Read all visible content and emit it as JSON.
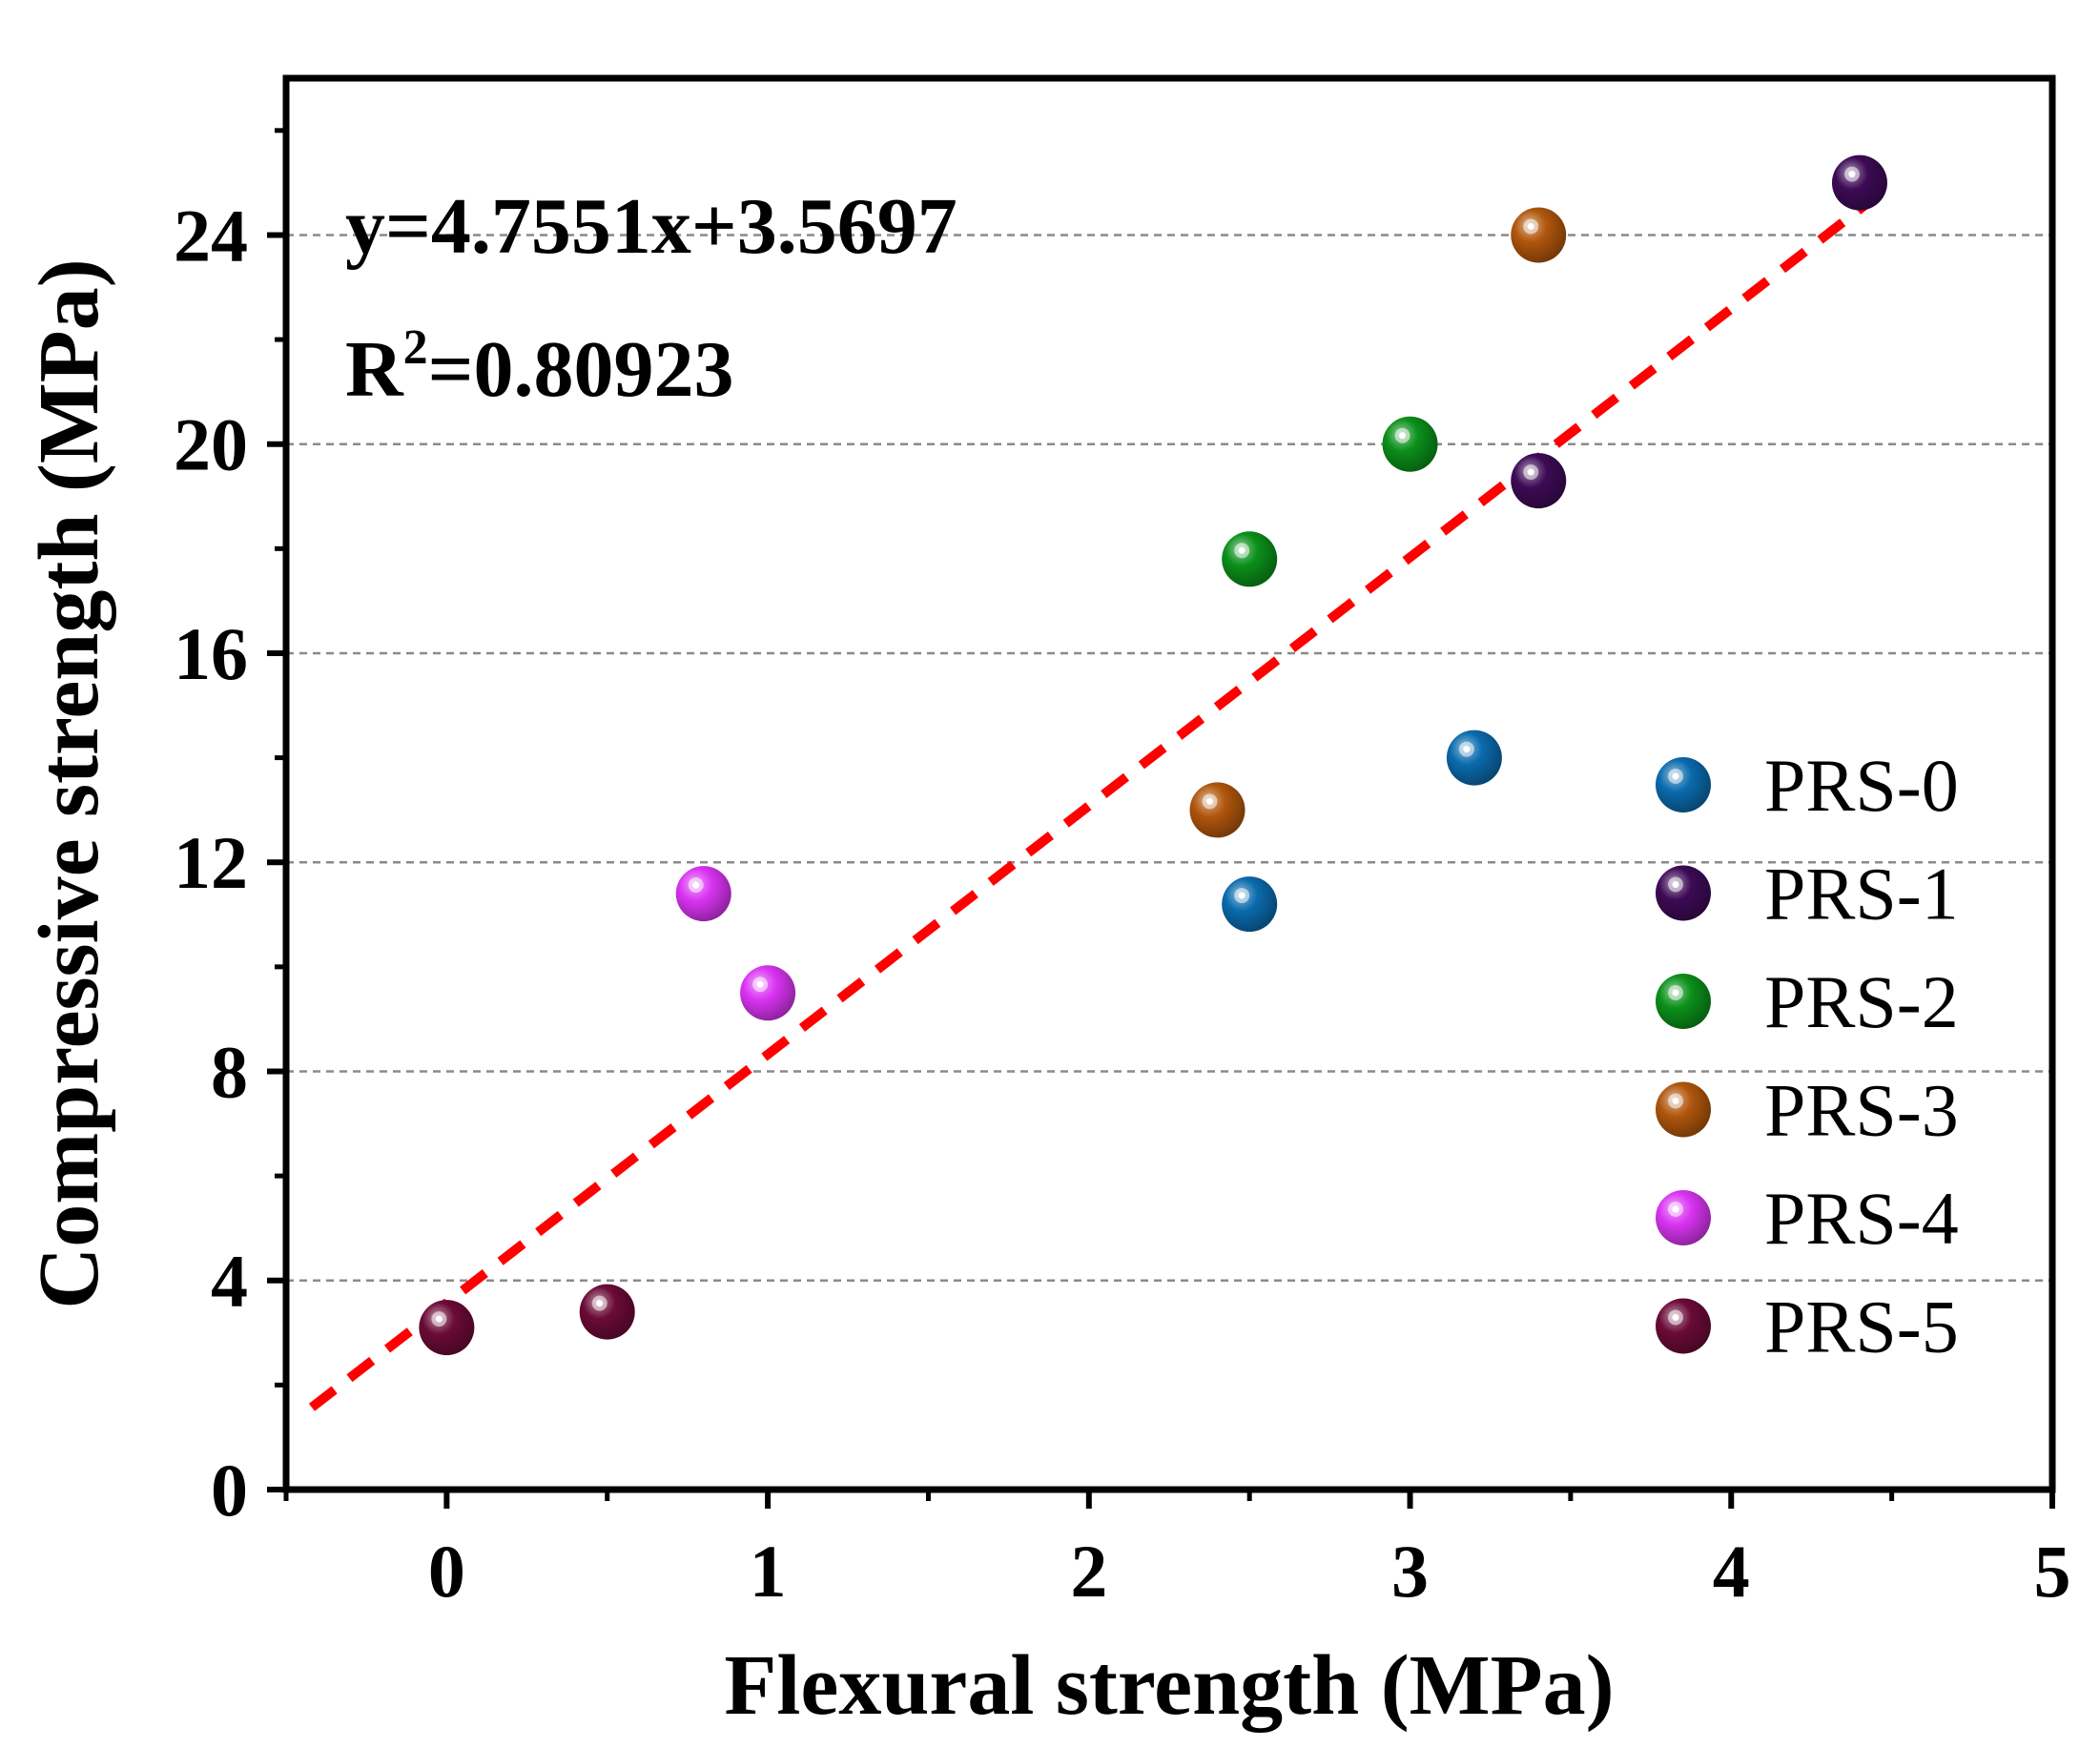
{
  "chart_data": {
    "type": "scatter",
    "xlabel": "Flexural strength (MPa)",
    "ylabel": "Compressive strength (MPa)",
    "xlim": [
      -0.5,
      5
    ],
    "ylim": [
      0,
      27
    ],
    "xticks": [
      "0",
      "1",
      "2",
      "3",
      "4",
      "5"
    ],
    "yticks": [
      "0",
      "4",
      "8",
      "12",
      "16",
      "20",
      "24"
    ],
    "grid": "horizontal dashed",
    "legend_position": "right",
    "annotations": {
      "equation": "y=4.7551x+3.5697",
      "r2_prefix": "R",
      "r2_sup": "2",
      "r2_value": "=0.80923"
    },
    "fit": {
      "slope": 4.7551,
      "intercept": 3.5697,
      "x_range": [
        -0.42,
        4.5
      ],
      "color": "#ff0000"
    },
    "series": [
      {
        "name": "PRS-0",
        "color": "#0a6aac",
        "points": [
          [
            2.5,
            11.2
          ],
          [
            3.2,
            14.0
          ]
        ]
      },
      {
        "name": "PRS-1",
        "color": "#3d0a55",
        "points": [
          [
            3.4,
            19.3
          ],
          [
            4.4,
            25.0
          ]
        ]
      },
      {
        "name": "PRS-2",
        "color": "#0b8f1a",
        "points": [
          [
            2.5,
            17.8
          ],
          [
            3.0,
            20.0
          ]
        ]
      },
      {
        "name": "PRS-3",
        "color": "#b0560c",
        "points": [
          [
            2.4,
            13.0
          ],
          [
            3.4,
            24.0
          ]
        ]
      },
      {
        "name": "PRS-4",
        "color": "#d934f2",
        "points": [
          [
            0.8,
            11.4
          ],
          [
            1.0,
            9.5
          ]
        ]
      },
      {
        "name": "PRS-5",
        "color": "#6b0a37",
        "points": [
          [
            0.0,
            3.1
          ],
          [
            0.5,
            3.4
          ]
        ]
      }
    ]
  }
}
